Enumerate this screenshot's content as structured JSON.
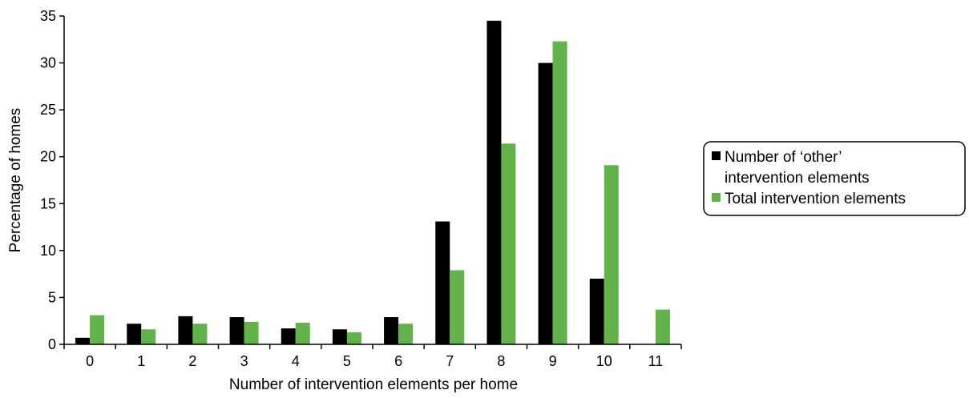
{
  "chart_data": {
    "type": "bar",
    "categories": [
      "0",
      "1",
      "2",
      "3",
      "4",
      "5",
      "6",
      "7",
      "8",
      "9",
      "10",
      "11"
    ],
    "series": [
      {
        "name": "Number of ‘other’ intervention elements",
        "legend_lines": [
          "Number of ‘other’",
          "intervention elements"
        ],
        "color": "#000000",
        "values": [
          0.7,
          2.2,
          3.0,
          2.9,
          1.7,
          1.6,
          2.9,
          13.1,
          34.5,
          30.0,
          7.0,
          0
        ]
      },
      {
        "name": "Total intervention elements",
        "legend_lines": [
          "Total intervention elements"
        ],
        "color": "#62b34a",
        "values": [
          3.1,
          1.6,
          2.2,
          2.4,
          2.3,
          1.3,
          2.2,
          7.9,
          21.4,
          32.3,
          19.1,
          3.7
        ]
      }
    ],
    "xlabel": "Number of intervention elements per home",
    "ylabel": "Percentage of homes",
    "ylim": [
      0,
      35
    ],
    "yticks": [
      0,
      5,
      10,
      15,
      20,
      25,
      30,
      35
    ],
    "grid": false,
    "legend_position": "right"
  }
}
